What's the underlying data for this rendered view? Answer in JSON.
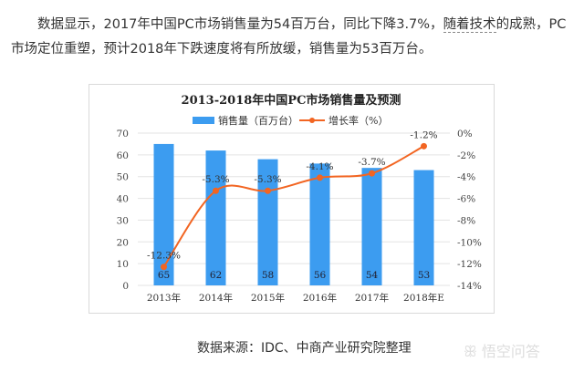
{
  "paragraph": {
    "line1_a": "数据显示，2017年中国PC市场销售量为54百万台，同比下降3.7%，",
    "link": "随着技术",
    "line1_b": "的成熟，PC市场定位重塑，预计2018年下跌速度将有所放缓，销售量为53百万台。"
  },
  "chart_data": {
    "type": "bar+line",
    "title": "2013-2018年中国PC市场销售量及预测",
    "categories": [
      "2013年",
      "2014年",
      "2015年",
      "2016年",
      "2017年",
      "2018年E"
    ],
    "series": [
      {
        "name": "销售量（百万台）",
        "type": "bar",
        "axis": "left",
        "color": "#3c9cf0",
        "values": [
          65,
          62,
          58,
          56,
          54,
          53
        ],
        "labels": [
          "65",
          "62",
          "58",
          "56",
          "54",
          "53"
        ]
      },
      {
        "name": "增长率（%）",
        "type": "line",
        "axis": "right",
        "color": "#f26522",
        "values": [
          -12.3,
          -5.3,
          -5.3,
          -4.1,
          -3.7,
          -1.2
        ],
        "labels": [
          "-12.3%",
          "-5.3%",
          "-5.3%",
          "-4.1%",
          "-3.7%",
          "-1.2%"
        ]
      }
    ],
    "ylim": [
      0,
      70
    ],
    "yticks": [
      "0",
      "10",
      "20",
      "30",
      "40",
      "50",
      "60",
      "70"
    ],
    "y2lim": [
      -14,
      0
    ],
    "y2ticks": [
      "-14%",
      "-12%",
      "-10%",
      "-8%",
      "-6%",
      "-4%",
      "-2%",
      "0%"
    ],
    "grid": true,
    "legend": "top"
  },
  "source": "数据来源：IDC、中商产业研究院整理",
  "watermark": "悟空问答"
}
